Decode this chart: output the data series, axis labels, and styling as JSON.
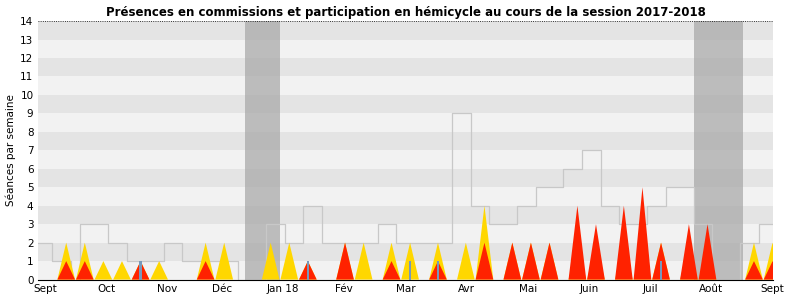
{
  "title": "Présences en commissions et participation en hémicycle au cours de la session 2017-2018",
  "ylabel": "Séances par semaine",
  "ylim": [
    0,
    14
  ],
  "yticks": [
    0,
    1,
    2,
    3,
    4,
    5,
    6,
    7,
    8,
    9,
    10,
    11,
    12,
    13,
    14
  ],
  "x_labels": [
    "Sept",
    "Oct",
    "Nov",
    "Déc",
    "Jan 18",
    "Fév",
    "Mar",
    "Avr",
    "Mai",
    "Juin",
    "Juil",
    "Août",
    "Sept"
  ],
  "x_positions": [
    0.5,
    5.0,
    9.5,
    13.5,
    18.0,
    22.5,
    27.0,
    31.5,
    36.0,
    40.5,
    45.0,
    49.5,
    54.0
  ],
  "gray_bands": [
    {
      "xmin": 15.2,
      "xmax": 17.8
    },
    {
      "xmin": 48.2,
      "xmax": 51.8
    }
  ],
  "stripe_color_even": "#f2f2f2",
  "stripe_color_odd": "#e4e4e4",
  "gray_band_color": "#aaaaaa",
  "line_color": "#c8c8c8",
  "yellow_color": "#FFD700",
  "red_color": "#FF2200",
  "blue_color": "#7799BB",
  "step_line": [
    2,
    2,
    1,
    1,
    0,
    3,
    3,
    3,
    2,
    2,
    1,
    1,
    1,
    1,
    2,
    2,
    1,
    1,
    1,
    1,
    1,
    1,
    0,
    0,
    0,
    3,
    3,
    2,
    2,
    4,
    4,
    2,
    2,
    2,
    2,
    2,
    2,
    3,
    3,
    2,
    2,
    2,
    2,
    2,
    2,
    9,
    9,
    4,
    4,
    3,
    3,
    3,
    4,
    4,
    5,
    5,
    5,
    6,
    6,
    7,
    7,
    4,
    4,
    3,
    3,
    3,
    4,
    4,
    5,
    5,
    5,
    3,
    3,
    0,
    0,
    0,
    2,
    2,
    3,
    3
  ],
  "peak_x": [
    3,
    5,
    7,
    9,
    11,
    13,
    18,
    20,
    22,
    25,
    27,
    29,
    33,
    35,
    38,
    40,
    43,
    46,
    48,
    51,
    53,
    55,
    58,
    60,
    63,
    65,
    67,
    70,
    72,
    77,
    79
  ],
  "comm_y": [
    2,
    2,
    1,
    1,
    1,
    1,
    2,
    2,
    0,
    2,
    2,
    1,
    2,
    2,
    2,
    2,
    2,
    2,
    4,
    2,
    2,
    2,
    2,
    2,
    2,
    2,
    2,
    2,
    2,
    2,
    2
  ],
  "hemi_y": [
    1,
    1,
    0,
    0,
    1,
    0,
    1,
    0,
    0,
    0,
    0,
    1,
    2,
    0,
    1,
    0,
    1,
    0,
    2,
    2,
    2,
    2,
    4,
    3,
    4,
    5,
    2,
    3,
    3,
    1,
    1
  ],
  "blue_bar_x": [
    11,
    29,
    40,
    43,
    67
  ],
  "blue_bar_h": [
    1,
    1,
    1,
    1,
    1
  ]
}
